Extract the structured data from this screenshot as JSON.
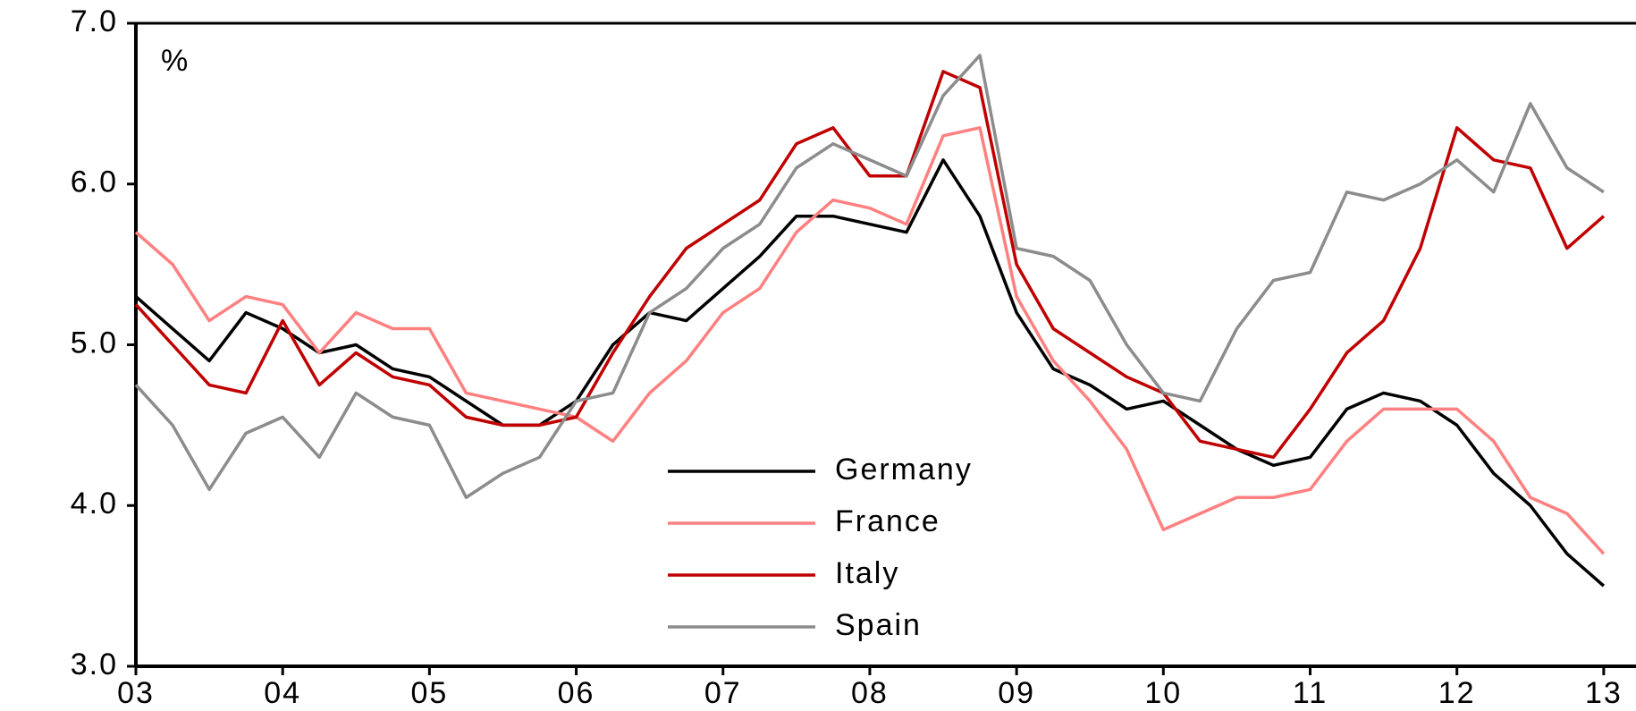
{
  "chart_data": {
    "type": "line",
    "y_unit_label": "%",
    "xlim": [
      3,
      13.22
    ],
    "xticks": [
      {
        "value": 3,
        "label": "03"
      },
      {
        "value": 4,
        "label": "04"
      },
      {
        "value": 5,
        "label": "05"
      },
      {
        "value": 6,
        "label": "06"
      },
      {
        "value": 7,
        "label": "07"
      },
      {
        "value": 8,
        "label": "08"
      },
      {
        "value": 9,
        "label": "09"
      },
      {
        "value": 10,
        "label": "10"
      },
      {
        "value": 11,
        "label": "11"
      },
      {
        "value": 12,
        "label": "12"
      },
      {
        "value": 13,
        "label": "13"
      }
    ],
    "ylim": [
      3,
      7
    ],
    "yticks": [
      {
        "value": 3,
        "label": "3.0"
      },
      {
        "value": 4,
        "label": "4.0"
      },
      {
        "value": 5,
        "label": "5.0"
      },
      {
        "value": 6,
        "label": "6.0"
      },
      {
        "value": 7,
        "label": "7.0"
      }
    ],
    "x": [
      3,
      3.25,
      3.5,
      3.75,
      4,
      4.25,
      4.5,
      4.75,
      5,
      5.25,
      5.5,
      5.75,
      6,
      6.25,
      6.5,
      6.75,
      7,
      7.25,
      7.5,
      7.75,
      8,
      8.25,
      8.5,
      8.75,
      9,
      9.25,
      9.5,
      9.75,
      10,
      10.25,
      10.5,
      10.75,
      11,
      11.25,
      11.5,
      11.75,
      12,
      12.25,
      12.5,
      12.75,
      13
    ],
    "series": [
      {
        "name": "Germany",
        "color": "#000000",
        "values": [
          5.3,
          5.1,
          4.9,
          5.2,
          5.1,
          4.95,
          5.0,
          4.85,
          4.8,
          4.65,
          4.5,
          4.5,
          4.65,
          5.0,
          5.2,
          5.15,
          5.35,
          5.55,
          5.8,
          5.8,
          5.75,
          5.7,
          6.15,
          5.8,
          5.2,
          4.85,
          4.75,
          4.6,
          4.65,
          4.5,
          4.35,
          4.25,
          4.3,
          4.6,
          4.7,
          4.65,
          4.5,
          4.2,
          4.0,
          3.7,
          3.5
        ]
      },
      {
        "name": "France",
        "color": "#ff8080",
        "values": [
          5.7,
          5.5,
          5.15,
          5.3,
          5.25,
          4.95,
          5.2,
          5.1,
          5.1,
          4.7,
          4.65,
          4.6,
          4.55,
          4.4,
          4.7,
          4.9,
          5.2,
          5.35,
          5.7,
          5.9,
          5.85,
          5.75,
          6.3,
          6.35,
          5.3,
          4.9,
          4.65,
          4.35,
          3.85,
          3.95,
          4.05,
          4.05,
          4.1,
          4.4,
          4.6,
          4.6,
          4.6,
          4.4,
          4.05,
          3.95,
          3.7
        ]
      },
      {
        "name": "Italy",
        "color": "#c00000",
        "values": [
          5.25,
          5.0,
          4.75,
          4.7,
          5.15,
          4.75,
          4.95,
          4.8,
          4.75,
          4.55,
          4.5,
          4.5,
          4.55,
          4.95,
          5.3,
          5.6,
          5.75,
          5.9,
          6.25,
          6.35,
          6.05,
          6.05,
          6.7,
          6.6,
          5.5,
          5.1,
          4.95,
          4.8,
          4.7,
          4.4,
          4.35,
          4.3,
          4.6,
          4.95,
          5.15,
          5.6,
          6.35,
          6.15,
          6.1,
          5.6,
          5.8
        ]
      },
      {
        "name": "Spain",
        "color": "#8c8c8c",
        "values": [
          4.75,
          4.5,
          4.1,
          4.45,
          4.55,
          4.3,
          4.7,
          4.55,
          4.5,
          4.05,
          4.2,
          4.3,
          4.65,
          4.7,
          5.2,
          5.35,
          5.6,
          5.75,
          6.1,
          6.25,
          6.15,
          6.05,
          6.55,
          6.8,
          5.6,
          5.55,
          5.4,
          5.0,
          4.7,
          4.65,
          5.1,
          5.4,
          5.45,
          5.95,
          5.9,
          6.0,
          6.15,
          5.95,
          6.5,
          6.1,
          5.95
        ]
      }
    ]
  }
}
